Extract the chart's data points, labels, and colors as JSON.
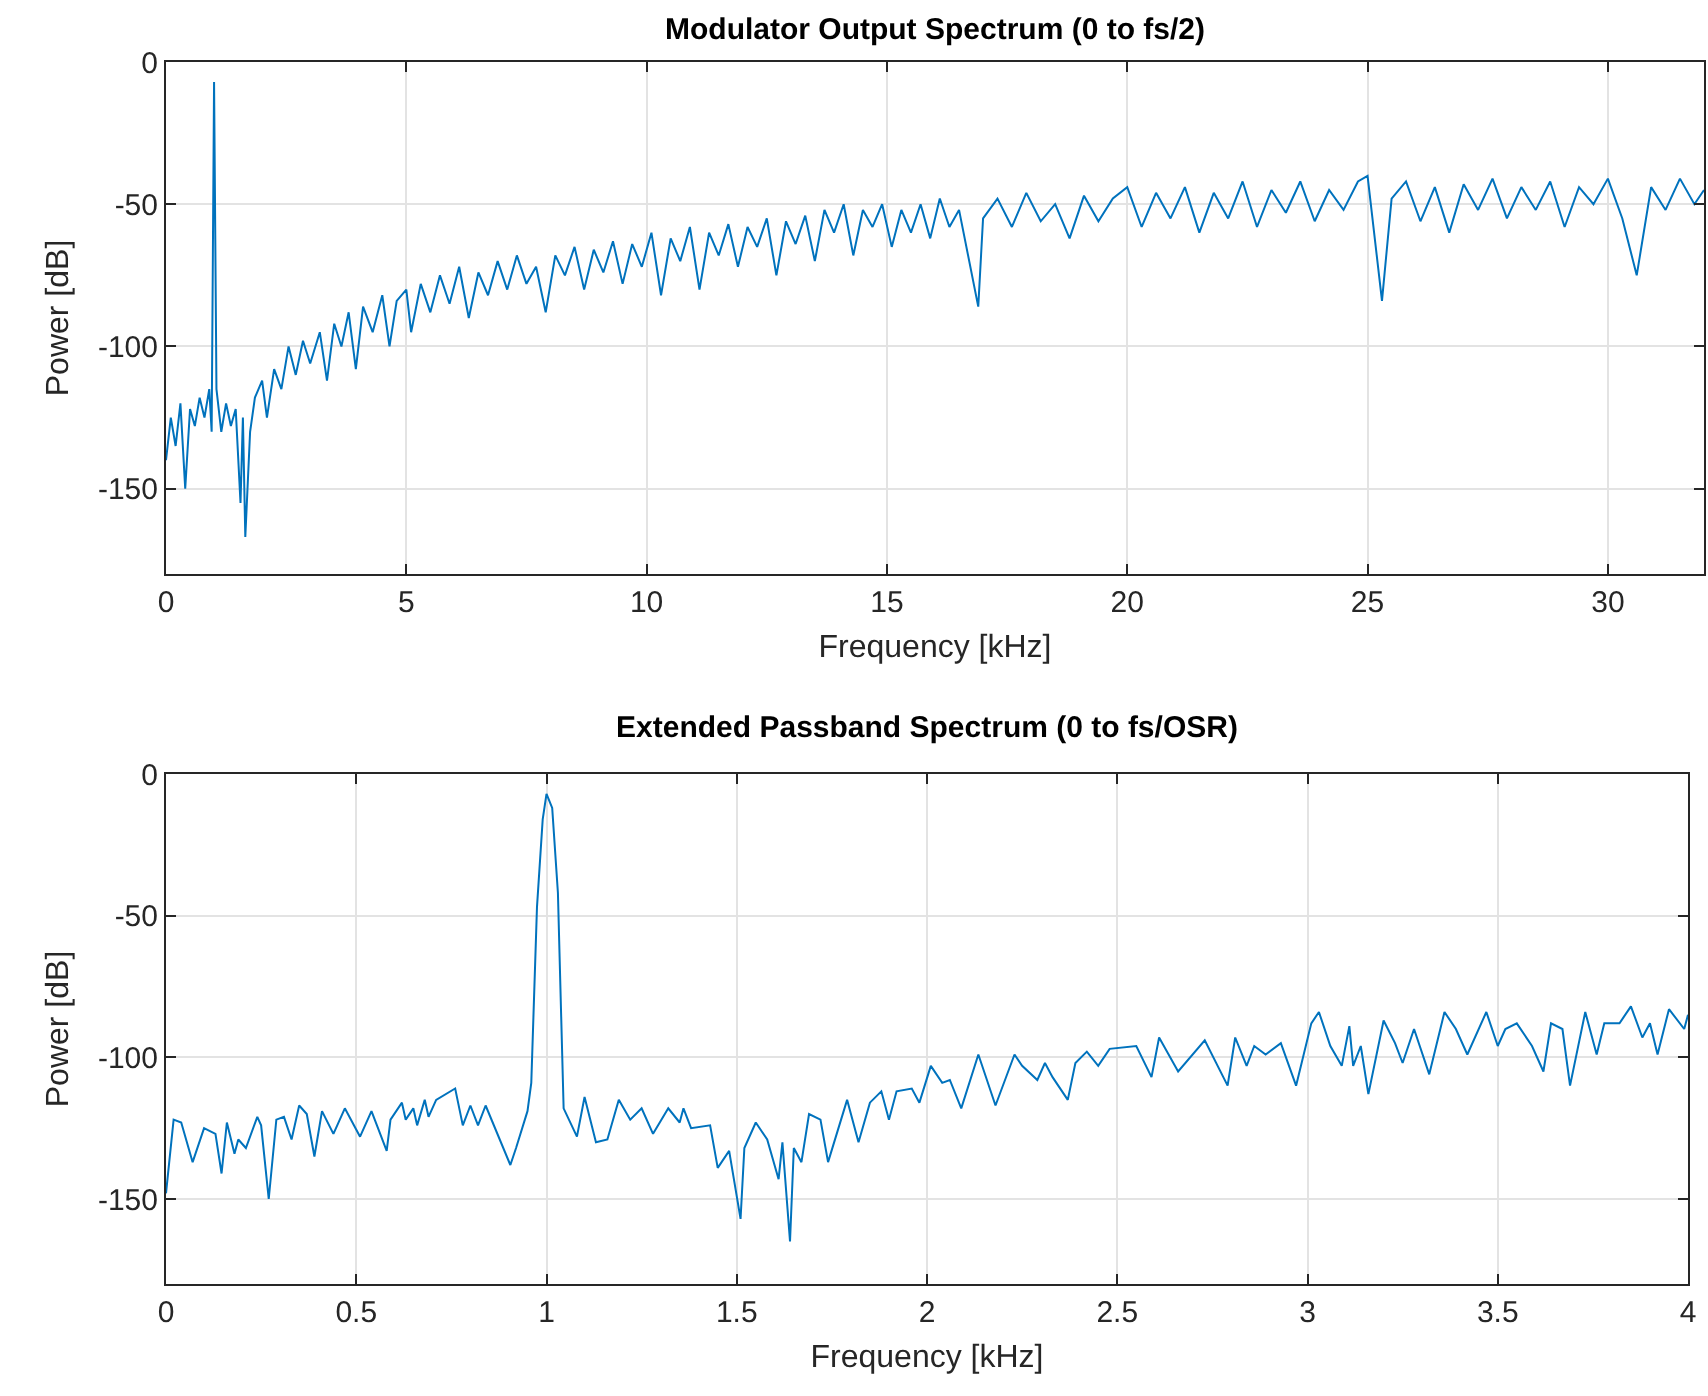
{
  "chart_data": [
    {
      "type": "line",
      "title": "Modulator Output Spectrum (0 to fs/2)",
      "xlabel": "Frequency [kHz]",
      "ylabel": "Power [dB]",
      "grid": true,
      "xlim": [
        0,
        32
      ],
      "ylim": [
        -180,
        0
      ],
      "xticks": [
        0,
        5,
        10,
        15,
        20,
        25,
        30
      ],
      "yticks": [
        -150,
        -100,
        -50,
        0
      ],
      "series": [
        {
          "color": "#0072bd",
          "x": [
            0,
            0.1,
            0.2,
            0.3,
            0.4,
            0.5,
            0.6,
            0.7,
            0.8,
            0.9,
            0.95,
            1.0,
            1.05,
            1.15,
            1.25,
            1.35,
            1.45,
            1.55,
            1.6,
            1.65,
            1.75,
            1.85,
            2.0,
            2.1,
            2.25,
            2.4,
            2.55,
            2.7,
            2.85,
            3.0,
            3.2,
            3.35,
            3.5,
            3.65,
            3.8,
            3.95,
            4.1,
            4.3,
            4.5,
            4.65,
            4.8,
            5.0,
            5.1,
            5.3,
            5.5,
            5.7,
            5.9,
            6.1,
            6.3,
            6.5,
            6.7,
            6.9,
            7.1,
            7.3,
            7.5,
            7.7,
            7.9,
            8.1,
            8.3,
            8.5,
            8.7,
            8.9,
            9.1,
            9.3,
            9.5,
            9.7,
            9.9,
            10.1,
            10.3,
            10.5,
            10.7,
            10.9,
            11.1,
            11.3,
            11.5,
            11.7,
            11.9,
            12.1,
            12.3,
            12.5,
            12.7,
            12.9,
            13.1,
            13.3,
            13.5,
            13.7,
            13.9,
            14.1,
            14.3,
            14.5,
            14.7,
            14.9,
            15.1,
            15.3,
            15.5,
            15.7,
            15.9,
            16.1,
            16.3,
            16.5,
            16.9,
            17.0,
            17.3,
            17.6,
            17.9,
            18.2,
            18.5,
            18.8,
            19.1,
            19.4,
            19.7,
            20.0,
            20.3,
            20.6,
            20.9,
            21.2,
            21.5,
            21.8,
            22.1,
            22.4,
            22.7,
            23.0,
            23.3,
            23.6,
            23.9,
            24.2,
            24.5,
            24.8,
            25.0,
            25.3,
            25.5,
            25.8,
            26.1,
            26.4,
            26.7,
            27.0,
            27.3,
            27.6,
            27.9,
            28.2,
            28.5,
            28.8,
            29.1,
            29.4,
            29.7,
            30.0,
            30.3,
            30.6,
            30.9,
            31.2,
            31.5,
            31.8,
            32.0
          ],
          "values": [
            -140,
            -125,
            -135,
            -120,
            -150,
            -122,
            -128,
            -118,
            -125,
            -115,
            -130,
            -7,
            -115,
            -130,
            -120,
            -128,
            -122,
            -155,
            -125,
            -167,
            -130,
            -118,
            -112,
            -125,
            -108,
            -115,
            -100,
            -110,
            -98,
            -106,
            -95,
            -112,
            -92,
            -100,
            -88,
            -108,
            -86,
            -95,
            -82,
            -100,
            -84,
            -80,
            -95,
            -78,
            -88,
            -75,
            -85,
            -72,
            -90,
            -74,
            -82,
            -70,
            -80,
            -68,
            -78,
            -72,
            -88,
            -68,
            -75,
            -65,
            -80,
            -66,
            -74,
            -63,
            -78,
            -64,
            -72,
            -60,
            -82,
            -62,
            -70,
            -58,
            -80,
            -60,
            -68,
            -57,
            -72,
            -58,
            -65,
            -55,
            -75,
            -56,
            -64,
            -54,
            -70,
            -52,
            -60,
            -50,
            -68,
            -52,
            -58,
            -50,
            -65,
            -52,
            -60,
            -50,
            -62,
            -48,
            -58,
            -52,
            -86,
            -55,
            -48,
            -58,
            -46,
            -56,
            -50,
            -62,
            -47,
            -56,
            -48,
            -44,
            -58,
            -46,
            -55,
            -44,
            -60,
            -46,
            -55,
            -42,
            -58,
            -45,
            -53,
            -42,
            -56,
            -45,
            -52,
            -42,
            -40,
            -84,
            -48,
            -42,
            -56,
            -44,
            -60,
            -43,
            -52,
            -41,
            -55,
            -44,
            -52,
            -42,
            -58,
            -44,
            -50,
            -41,
            -55,
            -75,
            -44,
            -52,
            -41,
            -50,
            -45
          ]
        }
      ]
    },
    {
      "type": "line",
      "title": "Extended Passband Spectrum (0 to fs/OSR)",
      "xlabel": "Frequency [kHz]",
      "ylabel": "Power [dB]",
      "grid": true,
      "xlim": [
        0,
        4
      ],
      "ylim": [
        -180,
        0
      ],
      "xticks": [
        0,
        0.5,
        1,
        1.5,
        2,
        2.5,
        3,
        3.5,
        4
      ],
      "yticks": [
        -150,
        -100,
        -50,
        0
      ],
      "series": [
        {
          "color": "#0072bd",
          "x": [
            0,
            0.02,
            0.04,
            0.07,
            0.1,
            0.13,
            0.146,
            0.16,
            0.18,
            0.19,
            0.21,
            0.24,
            0.25,
            0.27,
            0.29,
            0.31,
            0.33,
            0.35,
            0.37,
            0.39,
            0.41,
            0.44,
            0.47,
            0.51,
            0.54,
            0.58,
            0.59,
            0.62,
            0.63,
            0.65,
            0.66,
            0.68,
            0.69,
            0.71,
            0.76,
            0.78,
            0.8,
            0.82,
            0.84,
            0.905,
            0.92,
            0.95,
            0.96,
            0.975,
            0.99,
            1.0,
            1.015,
            1.03,
            1.045,
            1.08,
            1.1,
            1.13,
            1.16,
            1.19,
            1.22,
            1.25,
            1.28,
            1.32,
            1.35,
            1.36,
            1.38,
            1.43,
            1.45,
            1.48,
            1.51,
            1.52,
            1.55,
            1.58,
            1.61,
            1.62,
            1.64,
            1.65,
            1.67,
            1.69,
            1.72,
            1.74,
            1.79,
            1.82,
            1.85,
            1.88,
            1.9,
            1.92,
            1.96,
            1.98,
            2.01,
            2.04,
            2.06,
            2.09,
            2.135,
            2.18,
            2.23,
            2.25,
            2.29,
            2.31,
            2.33,
            2.37,
            2.39,
            2.42,
            2.45,
            2.48,
            2.55,
            2.59,
            2.61,
            2.66,
            2.73,
            2.79,
            2.81,
            2.84,
            2.86,
            2.89,
            2.93,
            2.97,
            3.01,
            3.03,
            3.06,
            3.09,
            3.11,
            3.12,
            3.14,
            3.16,
            3.2,
            3.23,
            3.25,
            3.28,
            3.32,
            3.36,
            3.39,
            3.42,
            3.47,
            3.5,
            3.52,
            3.55,
            3.59,
            3.62,
            3.64,
            3.67,
            3.69,
            3.73,
            3.76,
            3.78,
            3.82,
            3.83,
            3.85,
            3.88,
            3.9,
            3.92,
            3.95,
            3.99,
            4.0
          ],
          "values": [
            -148,
            -122,
            -123,
            -137,
            -125,
            -127,
            -141,
            -123,
            -134,
            -129,
            -132,
            -121,
            -124,
            -150,
            -122,
            -121,
            -129,
            -117,
            -120,
            -135,
            -119,
            -127,
            -118,
            -128,
            -119,
            -133,
            -122,
            -116,
            -122,
            -118,
            -124,
            -115,
            -121,
            -115,
            -111,
            -124,
            -117,
            -124,
            -117,
            -138,
            -132,
            -119,
            -109,
            -47,
            -16,
            -7,
            -12,
            -42,
            -118,
            -128,
            -114,
            -130,
            -129,
            -115,
            -122,
            -118,
            -127,
            -118,
            -123,
            -118,
            -125,
            -124,
            -139,
            -133,
            -157,
            -132,
            -123,
            -129,
            -143,
            -130,
            -165,
            -132,
            -137,
            -120,
            -122,
            -137,
            -115,
            -130,
            -116,
            -112,
            -122,
            -112,
            -111,
            -116,
            -103,
            -109,
            -108,
            -118,
            -99,
            -117,
            -99,
            -103,
            -108,
            -102,
            -107,
            -115,
            -102,
            -98,
            -103,
            -97,
            -96,
            -107,
            -93,
            -105,
            -94,
            -110,
            -93,
            -103,
            -96,
            -99,
            -95,
            -110,
            -88,
            -84,
            -96,
            -103,
            -89,
            -103,
            -96,
            -113,
            -87,
            -95,
            -102,
            -90,
            -106,
            -84,
            -90,
            -99,
            -84,
            -96,
            -90,
            -88,
            -96,
            -105,
            -88,
            -90,
            -110,
            -84,
            -99,
            -88,
            -88,
            -86,
            -82,
            -93,
            -88,
            -99,
            -83,
            -90,
            -85
          ]
        }
      ]
    }
  ]
}
